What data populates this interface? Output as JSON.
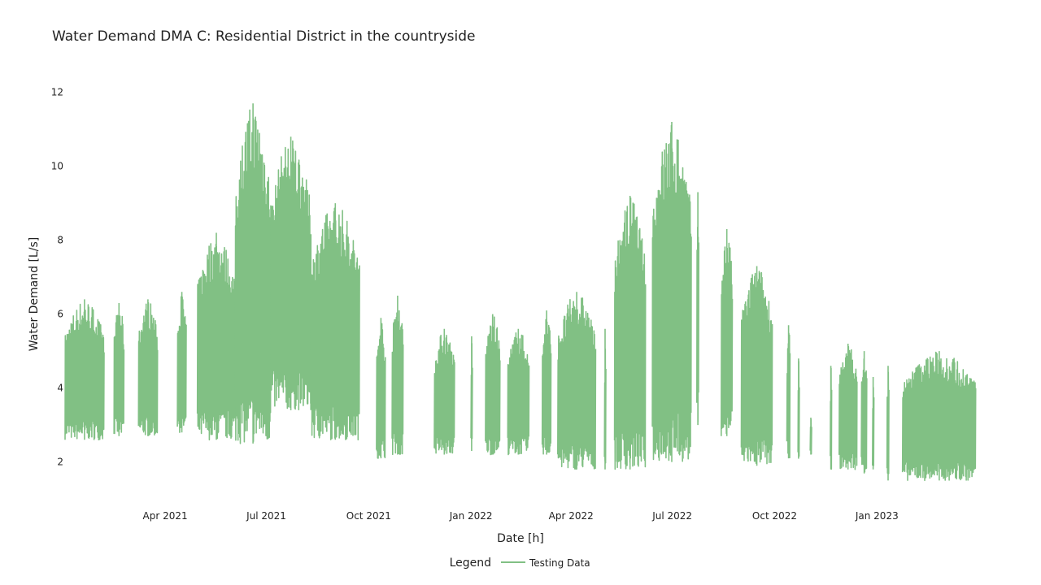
{
  "chart_data": {
    "type": "line",
    "title": "Water Demand DMA C: Residential District in the countryside",
    "xlabel": "Date [h]",
    "ylabel": "Water Demand [L/s]",
    "x_range": [
      "2021-01-01",
      "2023-03-31"
    ],
    "ylim": [
      1.2,
      12.3
    ],
    "y_ticks": [
      2,
      4,
      6,
      8,
      10,
      12
    ],
    "x_ticks": [
      {
        "date": "2021-04-01",
        "label": "Apr 2021"
      },
      {
        "date": "2021-07-01",
        "label": "Jul 2021"
      },
      {
        "date": "2021-10-01",
        "label": "Oct 2021"
      },
      {
        "date": "2022-01-01",
        "label": "Jan 2022"
      },
      {
        "date": "2022-04-01",
        "label": "Apr 2022"
      },
      {
        "date": "2022-07-01",
        "label": "Jul 2022"
      },
      {
        "date": "2022-10-01",
        "label": "Oct 2022"
      },
      {
        "date": "2023-01-01",
        "label": "Jan 2023"
      }
    ],
    "grid": false,
    "legend": {
      "title": "Legend",
      "position": "bottom-center"
    },
    "series": [
      {
        "name": "Testing Data",
        "color": "#81c084",
        "segments": [
          {
            "start": "2021-01-01",
            "end": "2021-02-05",
            "min": 2.6,
            "max": 6.4
          },
          {
            "start": "2021-02-14",
            "end": "2021-02-23",
            "min": 2.7,
            "max": 6.3
          },
          {
            "start": "2021-03-08",
            "end": "2021-03-25",
            "min": 2.7,
            "max": 6.4
          },
          {
            "start": "2021-04-12",
            "end": "2021-04-20",
            "min": 2.8,
            "max": 6.6
          },
          {
            "start": "2021-04-30",
            "end": "2021-06-03",
            "min": 2.6,
            "max": 8.2
          },
          {
            "start": "2021-06-03",
            "end": "2021-07-05",
            "min": 2.5,
            "max": 11.7
          },
          {
            "start": "2021-07-05",
            "end": "2021-08-10",
            "min": 3.4,
            "max": 10.8
          },
          {
            "start": "2021-08-10",
            "end": "2021-09-23",
            "min": 2.6,
            "max": 9.0
          },
          {
            "start": "2021-10-08",
            "end": "2021-10-16",
            "min": 2.1,
            "max": 5.9
          },
          {
            "start": "2021-10-22",
            "end": "2021-11-01",
            "min": 2.2,
            "max": 6.5
          },
          {
            "start": "2021-11-29",
            "end": "2021-12-17",
            "min": 2.2,
            "max": 5.6
          },
          {
            "start": "2022-01-01",
            "end": "2022-01-02",
            "min": 2.3,
            "max": 5.4
          },
          {
            "start": "2022-01-14",
            "end": "2022-01-27",
            "min": 2.2,
            "max": 6.0
          },
          {
            "start": "2022-02-03",
            "end": "2022-02-22",
            "min": 2.2,
            "max": 5.6
          },
          {
            "start": "2022-03-06",
            "end": "2022-03-14",
            "min": 2.2,
            "max": 6.1
          },
          {
            "start": "2022-03-20",
            "end": "2022-04-23",
            "min": 1.8,
            "max": 6.6
          },
          {
            "start": "2022-05-01",
            "end": "2022-05-02",
            "min": 1.8,
            "max": 5.6
          },
          {
            "start": "2022-05-10",
            "end": "2022-06-07",
            "min": 1.8,
            "max": 9.2
          },
          {
            "start": "2022-06-13",
            "end": "2022-07-18",
            "min": 2.0,
            "max": 11.2
          },
          {
            "start": "2022-07-23",
            "end": "2022-07-25",
            "min": 3.0,
            "max": 9.3
          },
          {
            "start": "2022-08-14",
            "end": "2022-08-24",
            "min": 2.7,
            "max": 8.3
          },
          {
            "start": "2022-09-01",
            "end": "2022-09-29",
            "min": 1.9,
            "max": 7.3
          },
          {
            "start": "2022-10-12",
            "end": "2022-10-15",
            "min": 2.1,
            "max": 5.7
          },
          {
            "start": "2022-10-22",
            "end": "2022-10-23",
            "min": 2.1,
            "max": 4.8
          },
          {
            "start": "2022-11-02",
            "end": "2022-11-03",
            "min": 2.2,
            "max": 3.2
          },
          {
            "start": "2022-11-20",
            "end": "2022-11-21",
            "min": 1.8,
            "max": 4.6
          },
          {
            "start": "2022-11-28",
            "end": "2022-12-14",
            "min": 1.8,
            "max": 5.2
          },
          {
            "start": "2022-12-18",
            "end": "2022-12-23",
            "min": 1.7,
            "max": 5.0
          },
          {
            "start": "2022-12-28",
            "end": "2022-12-29",
            "min": 1.8,
            "max": 4.3
          },
          {
            "start": "2023-01-10",
            "end": "2023-01-12",
            "min": 1.5,
            "max": 4.6
          },
          {
            "start": "2023-01-24",
            "end": "2023-03-31",
            "min": 1.5,
            "max": 5.0
          }
        ]
      }
    ]
  }
}
